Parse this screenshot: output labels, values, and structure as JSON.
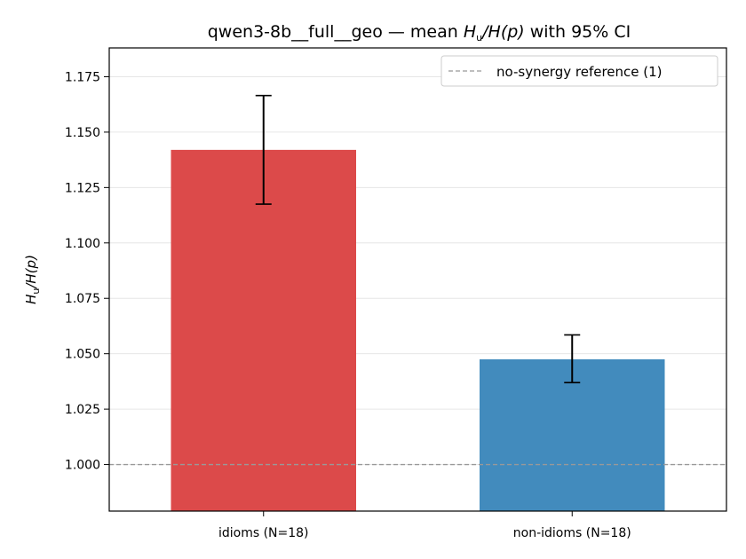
{
  "chart_data": {
    "type": "bar",
    "title_prefix": "qwen3-8b__full__geo — mean ",
    "title_math_H": "H",
    "title_math_sub": "u",
    "title_math_rest": "/H(p)",
    "title_suffix": " with 95% CI",
    "ylabel_H": "H",
    "ylabel_sub": "u",
    "ylabel_rest": "/H(p)",
    "categories": [
      "idioms (N=18)",
      "non-idioms (N=18)"
    ],
    "values": [
      1.142,
      1.0475
    ],
    "ci_low": [
      1.1175,
      1.037
    ],
    "ci_high": [
      1.1665,
      1.0585
    ],
    "colors": [
      "#dc4a4a",
      "#428bbd"
    ],
    "ylim": [
      0.979,
      1.188
    ],
    "yticks": [
      1.0,
      1.025,
      1.05,
      1.075,
      1.1,
      1.125,
      1.15,
      1.175
    ],
    "ytick_labels": [
      "1.000",
      "1.025",
      "1.050",
      "1.075",
      "1.100",
      "1.125",
      "1.150",
      "1.175"
    ],
    "reference_line": {
      "value": 1.0,
      "color": "#999999",
      "label": "no-synergy reference (1)"
    },
    "grid": "y",
    "legend_position": "top-right"
  }
}
